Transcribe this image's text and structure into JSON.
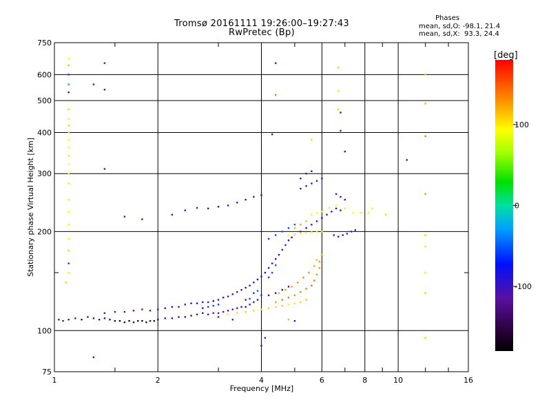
{
  "figure": {
    "title_line1": "Tromsø 20161111 19:26:00–19:27:43",
    "title_line2": "RwPretec (Bp)",
    "phase_heading": "Phases",
    "phase_line_o": "mean, sd,O: -98.1, 21.4",
    "phase_line_x": "mean, sd,X:  93.3, 24.4"
  },
  "chart_data": {
    "type": "scatter",
    "xlabel": "Frequency [MHz]",
    "ylabel": "Stationary phase Virtual Height [km]",
    "x_scale": "log",
    "y_scale": "log",
    "xlim": [
      1,
      16
    ],
    "ylim": [
      75,
      750
    ],
    "x_ticks": [
      1,
      2,
      4,
      6,
      8,
      10,
      16
    ],
    "x_tick_labels": [
      "1",
      "2",
      "4",
      "6",
      "8",
      "10",
      "16"
    ],
    "x_minor_ticks": [
      1.5,
      3,
      5,
      7,
      9,
      12,
      14
    ],
    "y_ticks": [
      75,
      100,
      200,
      300,
      400,
      500,
      600,
      750
    ],
    "y_tick_labels": [
      "75",
      "100",
      "200",
      "300",
      "400",
      "500",
      "600",
      "750"
    ],
    "y_minor_ticks": [
      150
    ],
    "grid": true,
    "colorbar": {
      "label": "[deg]",
      "range": [
        -180,
        180
      ],
      "ticks": [
        100,
        0,
        -100
      ],
      "tick_labels": [
        "100",
        "0",
        "-100"
      ],
      "colormap": "rainbow"
    },
    "series": [
      {
        "points": [
          [
            1.03,
            108,
            -120
          ],
          [
            1.06,
            107,
            -110
          ],
          [
            1.1,
            108,
            -120
          ],
          [
            1.15,
            109,
            -115
          ],
          [
            1.2,
            108,
            -130
          ],
          [
            1.25,
            110,
            -120
          ],
          [
            1.3,
            109,
            -125
          ],
          [
            1.35,
            108,
            -140
          ],
          [
            1.4,
            109,
            -130
          ],
          [
            1.45,
            108,
            -150
          ],
          [
            1.5,
            107,
            -150
          ],
          [
            1.55,
            107,
            -160
          ],
          [
            1.6,
            106,
            -155
          ],
          [
            1.65,
            107,
            -160
          ],
          [
            1.7,
            106,
            -150
          ],
          [
            1.75,
            107,
            -145
          ],
          [
            1.8,
            107,
            -160
          ],
          [
            1.85,
            106,
            -150
          ],
          [
            1.9,
            107,
            -140
          ],
          [
            1.95,
            107,
            -150
          ],
          [
            2.0,
            108,
            -140
          ],
          [
            2.1,
            109,
            -130
          ],
          [
            2.2,
            109,
            -135
          ],
          [
            2.3,
            110,
            -130
          ],
          [
            2.4,
            110,
            -120
          ],
          [
            2.5,
            111,
            -130
          ],
          [
            2.6,
            112,
            -120
          ],
          [
            2.7,
            113,
            -130
          ],
          [
            2.8,
            112,
            -110
          ],
          [
            2.9,
            113,
            -120
          ],
          [
            3.0,
            113,
            -115
          ],
          [
            3.1,
            114,
            -120
          ],
          [
            3.2,
            115,
            -110
          ],
          [
            3.3,
            116,
            -110
          ],
          [
            3.4,
            117,
            -115
          ],
          [
            3.5,
            118,
            -110
          ],
          [
            3.6,
            118,
            -100
          ],
          [
            3.7,
            120,
            -110
          ],
          [
            3.8,
            122,
            -100
          ],
          [
            3.9,
            124,
            -100
          ],
          [
            1.4,
            113,
            -115
          ],
          [
            1.5,
            114,
            -110
          ],
          [
            1.6,
            114,
            -110
          ],
          [
            1.7,
            115,
            -100
          ],
          [
            1.8,
            116,
            -110
          ],
          [
            1.9,
            115,
            -105
          ],
          [
            2.0,
            116,
            -100
          ],
          [
            2.1,
            117,
            -110
          ],
          [
            2.2,
            118,
            -95
          ],
          [
            2.3,
            118,
            -100
          ],
          [
            2.4,
            120,
            -100
          ],
          [
            2.5,
            121,
            -95
          ],
          [
            2.6,
            121,
            -90
          ],
          [
            2.7,
            122,
            -85
          ],
          [
            2.8,
            122,
            -100
          ],
          [
            2.9,
            123,
            -90
          ],
          [
            3.0,
            124,
            -95
          ],
          [
            3.1,
            126,
            -100
          ],
          [
            3.2,
            127,
            -105
          ],
          [
            3.3,
            129,
            -100
          ],
          [
            3.4,
            131,
            -95
          ],
          [
            3.5,
            133,
            -100
          ],
          [
            3.6,
            135,
            -90
          ],
          [
            3.7,
            137,
            -95
          ],
          [
            3.8,
            140,
            -100
          ],
          [
            3.9,
            143,
            -90
          ],
          [
            4.0,
            146,
            -95
          ],
          [
            4.1,
            150,
            -90
          ],
          [
            4.2,
            155,
            -95
          ],
          [
            4.3,
            160,
            -100
          ],
          [
            4.4,
            165,
            -90
          ],
          [
            4.5,
            170,
            -95
          ],
          [
            4.6,
            176,
            -100
          ],
          [
            4.7,
            182,
            -95
          ],
          [
            4.8,
            188,
            -90
          ],
          [
            4.9,
            192,
            -95
          ],
          [
            5.0,
            196,
            -100
          ],
          [
            5.2,
            200,
            -110
          ],
          [
            5.4,
            205,
            -100
          ],
          [
            5.6,
            210,
            -95
          ],
          [
            5.8,
            215,
            -100
          ],
          [
            6.0,
            220,
            -90
          ],
          [
            6.2,
            225,
            -100
          ],
          [
            6.4,
            230,
            -95
          ],
          [
            6.6,
            235,
            -100
          ],
          [
            6.8,
            232,
            -110
          ],
          [
            4.2,
            128,
            -90
          ],
          [
            4.4,
            130,
            -85
          ],
          [
            4.6,
            133,
            -80
          ],
          [
            4.8,
            136,
            -85
          ],
          [
            3.8,
            130,
            -60
          ],
          [
            3.9,
            132,
            -50
          ],
          [
            4.0,
            128,
            -60
          ],
          [
            3.7,
            125,
            -55
          ],
          [
            3.6,
            124,
            -65
          ],
          [
            2.8,
            118,
            -60
          ],
          [
            2.9,
            119,
            -55
          ],
          [
            3.0,
            120,
            -60
          ],
          [
            2.7,
            117,
            -65
          ],
          [
            4.2,
            145,
            -60
          ],
          [
            4.3,
            150,
            -55
          ],
          [
            4.4,
            158,
            -50
          ],
          [
            3.2,
            112,
            100
          ],
          [
            3.4,
            113,
            105
          ],
          [
            3.6,
            114,
            110
          ],
          [
            3.8,
            115,
            105
          ],
          [
            4.0,
            116,
            100
          ],
          [
            4.2,
            117,
            110
          ],
          [
            4.4,
            118,
            105
          ],
          [
            4.6,
            119,
            110
          ],
          [
            4.8,
            120,
            100
          ],
          [
            5.0,
            121,
            105
          ],
          [
            5.2,
            122,
            110
          ],
          [
            5.4,
            124,
            115
          ],
          [
            4.4,
            122,
            130
          ],
          [
            4.6,
            124,
            135
          ],
          [
            4.8,
            126,
            140
          ],
          [
            5.0,
            128,
            130
          ],
          [
            5.2,
            131,
            135
          ],
          [
            5.4,
            134,
            140
          ],
          [
            5.6,
            137,
            145
          ],
          [
            5.7,
            142,
            140
          ],
          [
            5.8,
            148,
            135
          ],
          [
            5.9,
            155,
            130
          ],
          [
            5.9,
            162,
            125
          ],
          [
            6.0,
            170,
            120
          ],
          [
            4.5,
            130,
            120
          ],
          [
            4.7,
            133,
            125
          ],
          [
            4.9,
            136,
            130
          ],
          [
            5.1,
            140,
            130
          ],
          [
            5.3,
            145,
            135
          ],
          [
            5.5,
            150,
            130
          ],
          [
            5.7,
            157,
            125
          ],
          [
            5.8,
            164,
            120
          ],
          [
            4.8,
            195,
            95
          ],
          [
            5.0,
            196,
            90
          ],
          [
            5.2,
            197,
            95
          ],
          [
            5.4,
            198,
            90
          ],
          [
            5.6,
            199,
            95
          ],
          [
            5.8,
            200,
            100
          ],
          [
            6.0,
            200,
            95
          ],
          [
            5.6,
            225,
            90
          ],
          [
            5.8,
            228,
            95
          ],
          [
            6.0,
            230,
            100
          ],
          [
            6.3,
            236,
            100
          ],
          [
            6.6,
            240,
            95
          ],
          [
            7.0,
            235,
            100
          ],
          [
            7.4,
            228,
            95
          ],
          [
            7.8,
            228,
            100
          ],
          [
            8.2,
            228,
            90
          ],
          [
            8.4,
            235,
            100
          ],
          [
            5.0,
            205,
            120
          ],
          [
            5.2,
            210,
            125
          ],
          [
            5.4,
            215,
            120
          ],
          [
            4.2,
            190,
            -60
          ],
          [
            4.4,
            195,
            -55
          ],
          [
            4.6,
            200,
            -50
          ],
          [
            4.8,
            205,
            -55
          ],
          [
            5.0,
            210,
            -50
          ],
          [
            2.8,
            235,
            -100
          ],
          [
            3.0,
            238,
            -95
          ],
          [
            3.2,
            240,
            -100
          ],
          [
            3.4,
            245,
            -90
          ],
          [
            3.6,
            250,
            -95
          ],
          [
            3.8,
            255,
            -100
          ],
          [
            4.0,
            258,
            -90
          ],
          [
            2.4,
            232,
            -110
          ],
          [
            2.6,
            236,
            -105
          ],
          [
            1.6,
            222,
            -110
          ],
          [
            1.8,
            218,
            -100
          ],
          [
            2.2,
            225,
            -105
          ],
          [
            5.2,
            270,
            -110
          ],
          [
            5.4,
            275,
            -105
          ],
          [
            5.6,
            280,
            -100
          ],
          [
            5.8,
            285,
            -110
          ],
          [
            6.0,
            290,
            -105
          ],
          [
            5.4,
            300,
            -100
          ],
          [
            5.6,
            305,
            -95
          ],
          [
            5.2,
            290,
            -110
          ],
          [
            6.6,
            260,
            -100
          ],
          [
            6.8,
            255,
            -95
          ],
          [
            7.0,
            250,
            -100
          ],
          [
            6.5,
            195,
            -110
          ],
          [
            6.7,
            193,
            -105
          ],
          [
            6.9,
            195,
            -100
          ],
          [
            7.1,
            197,
            -110
          ],
          [
            7.3,
            200,
            -105
          ],
          [
            7.5,
            202,
            -100
          ],
          [
            1.1,
            670,
            90
          ],
          [
            1.1,
            640,
            60
          ],
          [
            1.1,
            600,
            -60
          ],
          [
            1.1,
            560,
            -30
          ],
          [
            1.1,
            530,
            -90
          ],
          [
            1.1,
            470,
            110
          ],
          [
            1.1,
            440,
            100
          ],
          [
            1.1,
            420,
            110
          ],
          [
            1.1,
            400,
            100
          ],
          [
            1.1,
            380,
            95
          ],
          [
            1.1,
            360,
            100
          ],
          [
            1.1,
            340,
            105
          ],
          [
            1.1,
            320,
            95
          ],
          [
            1.1,
            300,
            100
          ],
          [
            1.1,
            280,
            105
          ],
          [
            1.1,
            250,
            100
          ],
          [
            1.1,
            230,
            90
          ],
          [
            1.1,
            210,
            100
          ],
          [
            1.1,
            190,
            95
          ],
          [
            1.1,
            175,
            110
          ],
          [
            1.1,
            160,
            -60
          ],
          [
            1.1,
            150,
            100
          ],
          [
            1.08,
            140,
            110
          ],
          [
            1.4,
            650,
            -110
          ],
          [
            1.3,
            560,
            -100
          ],
          [
            1.4,
            540,
            -105
          ],
          [
            1.4,
            310,
            -110
          ],
          [
            4.4,
            650,
            -110
          ],
          [
            4.4,
            520,
            140
          ],
          [
            4.3,
            395,
            -100
          ],
          [
            5.6,
            380,
            110
          ],
          [
            6.7,
            630,
            110
          ],
          [
            6.7,
            535,
            100
          ],
          [
            6.7,
            470,
            110
          ],
          [
            6.8,
            460,
            -100
          ],
          [
            6.8,
            405,
            -110
          ],
          [
            7.0,
            350,
            -100
          ],
          [
            12.0,
            600,
            110
          ],
          [
            12.0,
            490,
            120
          ],
          [
            12.0,
            390,
            140
          ],
          [
            12.0,
            260,
            130
          ],
          [
            12.0,
            195,
            110
          ],
          [
            12.0,
            180,
            100
          ],
          [
            12.0,
            150,
            100
          ],
          [
            12.0,
            130,
            110
          ],
          [
            12.0,
            95,
            110
          ],
          [
            10.6,
            330,
            -100
          ],
          [
            9.2,
            225,
            110
          ],
          [
            4.0,
            90,
            -100
          ],
          [
            4.1,
            95,
            -110
          ],
          [
            1.3,
            83,
            -100
          ],
          [
            4.8,
            108,
            120
          ],
          [
            5.0,
            107,
            -100
          ],
          [
            3.0,
            110,
            -100
          ],
          [
            3.3,
            108,
            -110
          ]
        ]
      }
    ]
  }
}
